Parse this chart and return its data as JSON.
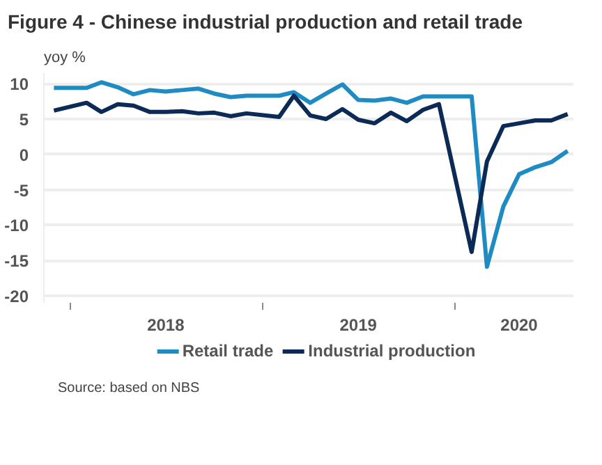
{
  "chart_data": {
    "type": "line",
    "title": "Figure 4 - Chinese industrial production and retail trade",
    "subtitle": "yoy %",
    "annotations": [
      "Source: based on NBS"
    ],
    "x": [
      "2017-12",
      "2018-02",
      "2018-03",
      "2018-04",
      "2018-05",
      "2018-06",
      "2018-07",
      "2018-08",
      "2018-09",
      "2018-10",
      "2018-11",
      "2018-12",
      "2019-02",
      "2019-03",
      "2019-04",
      "2019-05",
      "2019-06",
      "2019-07",
      "2019-08",
      "2019-09",
      "2019-10",
      "2019-11",
      "2019-12",
      "2020-02",
      "2020-03",
      "2020-04",
      "2020-05",
      "2020-06",
      "2020-07",
      "2020-08"
    ],
    "xlim": [
      "2017-11-12",
      "2020-08-12"
    ],
    "xticks": [
      {
        "value": "2018-01",
        "label": null
      },
      {
        "value": "2018-07",
        "label": "2018"
      },
      {
        "value": "2019-01",
        "label": null
      },
      {
        "value": "2019-07",
        "label": "2019"
      },
      {
        "value": "2020-01",
        "label": null
      },
      {
        "value": "2020-05",
        "label": "2020"
      }
    ],
    "ylim": [
      -21,
      11.5
    ],
    "yticks": [
      -20,
      -15,
      -10,
      -5,
      0,
      5,
      10
    ],
    "grid": "y",
    "legend": "bottom",
    "line_style": "solid",
    "marker": "none",
    "series": [
      {
        "name": "Retail trade",
        "color": "#1e8bc3",
        "values": [
          9.4,
          9.4,
          10.2,
          9.5,
          8.5,
          9.1,
          8.9,
          9.1,
          9.3,
          8.6,
          8.1,
          8.3,
          8.3,
          8.8,
          7.3,
          8.6,
          9.9,
          7.7,
          7.6,
          7.9,
          7.3,
          8.2,
          8.2,
          8.2,
          -15.9,
          -7.4,
          -2.8,
          -1.8,
          -1.1,
          0.5
        ]
      },
      {
        "name": "Industrial production",
        "color": "#0b2a55",
        "values": [
          6.2,
          7.3,
          6.0,
          7.1,
          6.9,
          6.0,
          6.0,
          6.1,
          5.8,
          5.9,
          5.4,
          5.8,
          5.3,
          8.3,
          5.5,
          5.0,
          6.4,
          4.9,
          4.4,
          5.9,
          4.7,
          6.3,
          7.1,
          -13.8,
          -1.0,
          4.0,
          4.4,
          4.8,
          4.8,
          5.7
        ]
      }
    ]
  }
}
